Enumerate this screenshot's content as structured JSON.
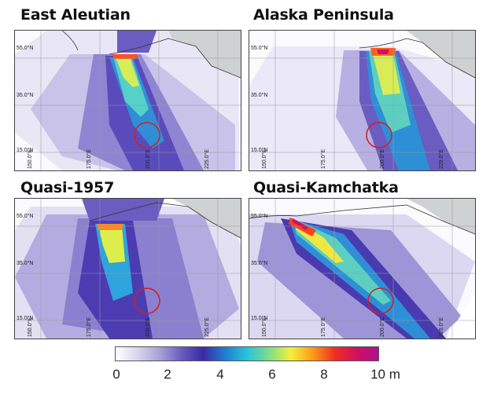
{
  "panels": [
    {
      "id": "east-aleutian",
      "title": "East Aleutian",
      "lat_labels": [
        "55.0°N",
        "35.0°N",
        "15.0°N"
      ],
      "lon_labels": [
        "150.0°E",
        "175.0°E",
        "200.0°E",
        "225.0°E"
      ]
    },
    {
      "id": "alaska-peninsula",
      "title": "Alaska Peninsula",
      "lat_labels": [
        "55.0°N",
        "35.0°N",
        "15.0°N"
      ],
      "lon_labels": [
        "150.0°E",
        "175.0°E",
        "200.0°E",
        "225.0°E"
      ]
    },
    {
      "id": "quasi-1957",
      "title": "Quasi-1957",
      "lat_labels": [
        "55.0°N",
        "35.0°N",
        "15.0°N"
      ],
      "lon_labels": [
        "150.0°E",
        "175.0°E",
        "200.0°E",
        "225.0°E"
      ]
    },
    {
      "id": "quasi-kamchatka",
      "title": "Quasi-Kamchatka",
      "lat_labels": [
        "55.0°N",
        "35.0°N",
        "15.0°N"
      ],
      "lon_labels": [
        "150.0°E",
        "175.0°E",
        "200.0°E",
        "225.0°E"
      ]
    }
  ],
  "colorbar": {
    "labels": [
      "0",
      "2",
      "4",
      "6",
      "8",
      "10 m"
    ],
    "min": 0,
    "max": 10,
    "unit": "m",
    "colors": [
      "#ffffff",
      "#d9d6ee",
      "#a9a2d8",
      "#6a5cc0",
      "#3b2aa6",
      "#1f7fd0",
      "#28c4d8",
      "#7fdc8a",
      "#f2f03a",
      "#ff9a1a",
      "#f03020",
      "#d01060",
      "#b01090"
    ]
  },
  "highlight": {
    "color": "#d02020"
  }
}
